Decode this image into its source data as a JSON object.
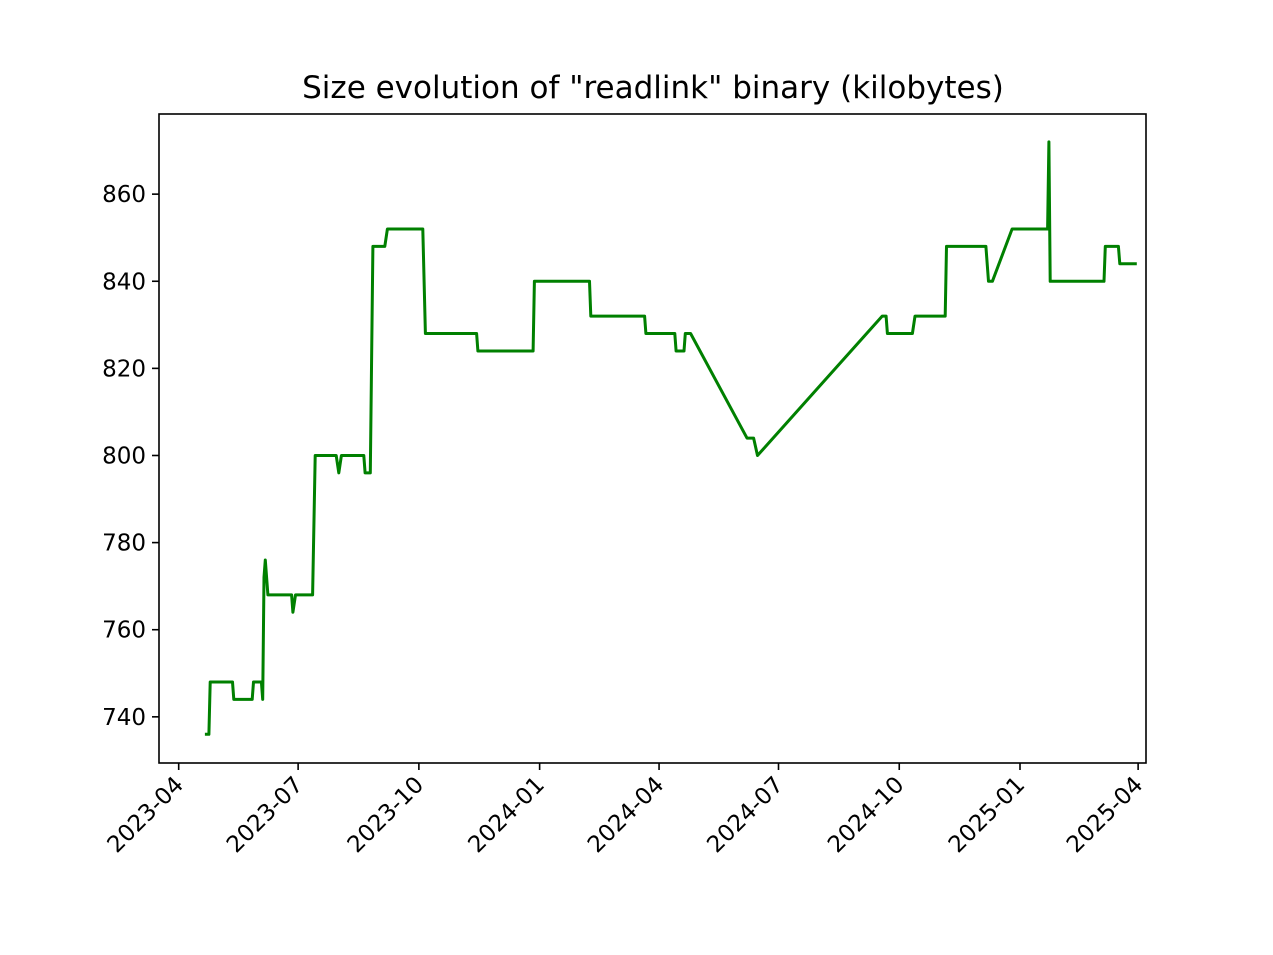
{
  "chart_data": {
    "type": "line",
    "title": "Size evolution of \"readlink\" binary (kilobytes)",
    "xlabel": "",
    "ylabel": "",
    "x_axis": {
      "type": "date",
      "range": [
        "2023-03-17",
        "2025-04-07"
      ],
      "ticks": [
        "2023-04",
        "2023-07",
        "2023-10",
        "2024-01",
        "2024-04",
        "2024-07",
        "2024-10",
        "2025-01",
        "2025-04"
      ],
      "tick_label_rotation": 45
    },
    "y_axis": {
      "range": [
        729.4,
        878.4
      ],
      "ticks": [
        740,
        760,
        780,
        800,
        820,
        840,
        860
      ]
    },
    "grid": false,
    "legend": "none",
    "line_color": "#008000",
    "series": [
      {
        "points": [
          [
            "2023-04-21",
            736
          ],
          [
            "2023-04-24",
            736
          ],
          [
            "2023-04-25",
            748
          ],
          [
            "2023-05-12",
            748
          ],
          [
            "2023-05-13",
            744
          ],
          [
            "2023-05-27",
            744
          ],
          [
            "2023-05-28",
            748
          ],
          [
            "2023-06-03",
            748
          ],
          [
            "2023-06-04",
            744
          ],
          [
            "2023-06-05",
            772
          ],
          [
            "2023-06-06",
            776
          ],
          [
            "2023-06-08",
            768
          ],
          [
            "2023-06-26",
            768
          ],
          [
            "2023-06-27",
            764
          ],
          [
            "2023-06-29",
            768
          ],
          [
            "2023-07-12",
            768
          ],
          [
            "2023-07-14",
            800
          ],
          [
            "2023-07-30",
            800
          ],
          [
            "2023-08-01",
            796
          ],
          [
            "2023-08-03",
            800
          ],
          [
            "2023-08-20",
            800
          ],
          [
            "2023-08-21",
            796
          ],
          [
            "2023-08-25",
            796
          ],
          [
            "2023-08-27",
            848
          ],
          [
            "2023-09-05",
            848
          ],
          [
            "2023-09-07",
            852
          ],
          [
            "2023-10-04",
            852
          ],
          [
            "2023-10-06",
            828
          ],
          [
            "2023-11-14",
            828
          ],
          [
            "2023-11-15",
            824
          ],
          [
            "2023-12-27",
            824
          ],
          [
            "2023-12-28",
            840
          ],
          [
            "2024-02-08",
            840
          ],
          [
            "2024-02-09",
            832
          ],
          [
            "2024-03-21",
            832
          ],
          [
            "2024-03-22",
            828
          ],
          [
            "2024-04-13",
            828
          ],
          [
            "2024-04-14",
            824
          ],
          [
            "2024-04-20",
            824
          ],
          [
            "2024-04-21",
            828
          ],
          [
            "2024-04-25",
            828
          ],
          [
            "2024-06-07",
            804
          ],
          [
            "2024-06-12",
            804
          ],
          [
            "2024-06-15",
            800
          ],
          [
            "2024-09-18",
            832
          ],
          [
            "2024-09-21",
            832
          ],
          [
            "2024-09-22",
            828
          ],
          [
            "2024-10-11",
            828
          ],
          [
            "2024-10-13",
            832
          ],
          [
            "2024-11-05",
            832
          ],
          [
            "2024-11-06",
            848
          ],
          [
            "2024-12-06",
            848
          ],
          [
            "2024-12-08",
            840
          ],
          [
            "2024-12-11",
            840
          ],
          [
            "2024-12-26",
            852
          ],
          [
            "2025-01-22",
            852
          ],
          [
            "2025-01-23",
            872
          ],
          [
            "2025-01-24",
            840
          ],
          [
            "2025-03-06",
            840
          ],
          [
            "2025-03-07",
            848
          ],
          [
            "2025-03-17",
            848
          ],
          [
            "2025-03-18",
            844
          ],
          [
            "2025-03-31",
            844
          ]
        ]
      }
    ]
  }
}
